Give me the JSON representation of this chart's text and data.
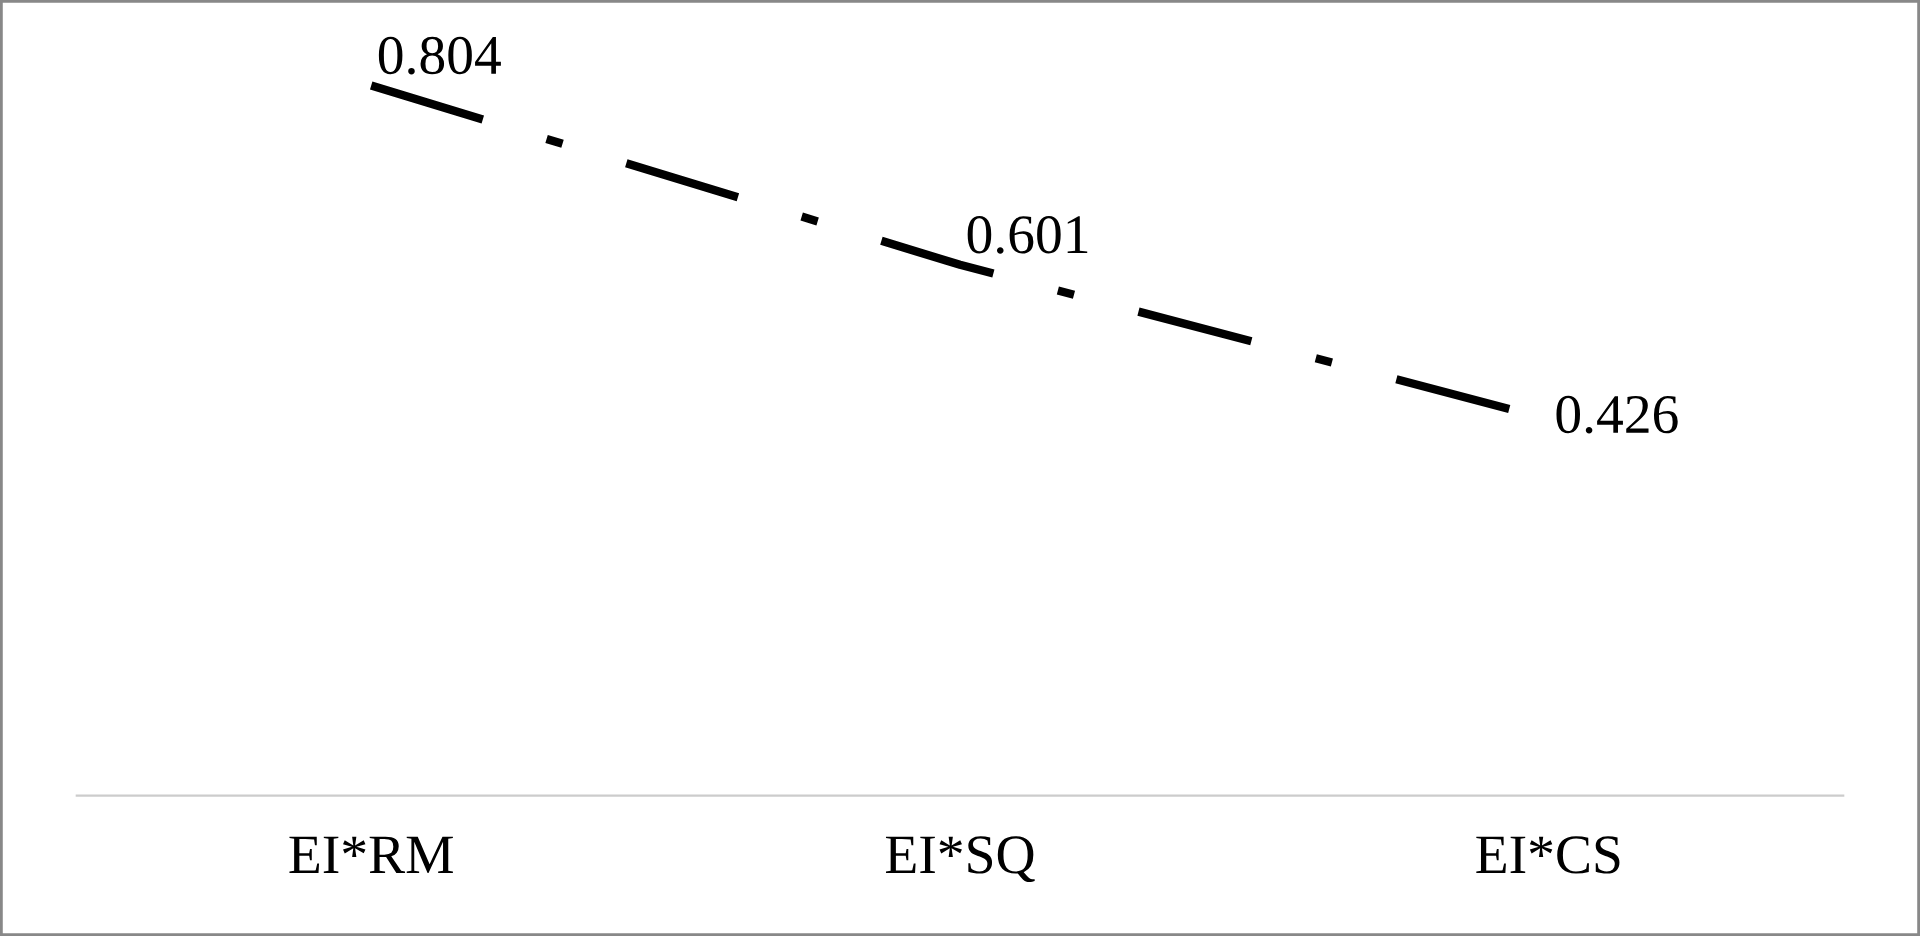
{
  "chart_data": {
    "type": "line",
    "categories": [
      "EI*RM",
      "EI*SQ",
      "EI*CS"
    ],
    "series": [
      {
        "color": "#000000",
        "values": [
          0.804,
          0.601,
          0.426
        ]
      }
    ],
    "tick_labels": "x",
    "data_labels": true,
    "line_style": "dashdot",
    "grid": false,
    "legend": false
  }
}
